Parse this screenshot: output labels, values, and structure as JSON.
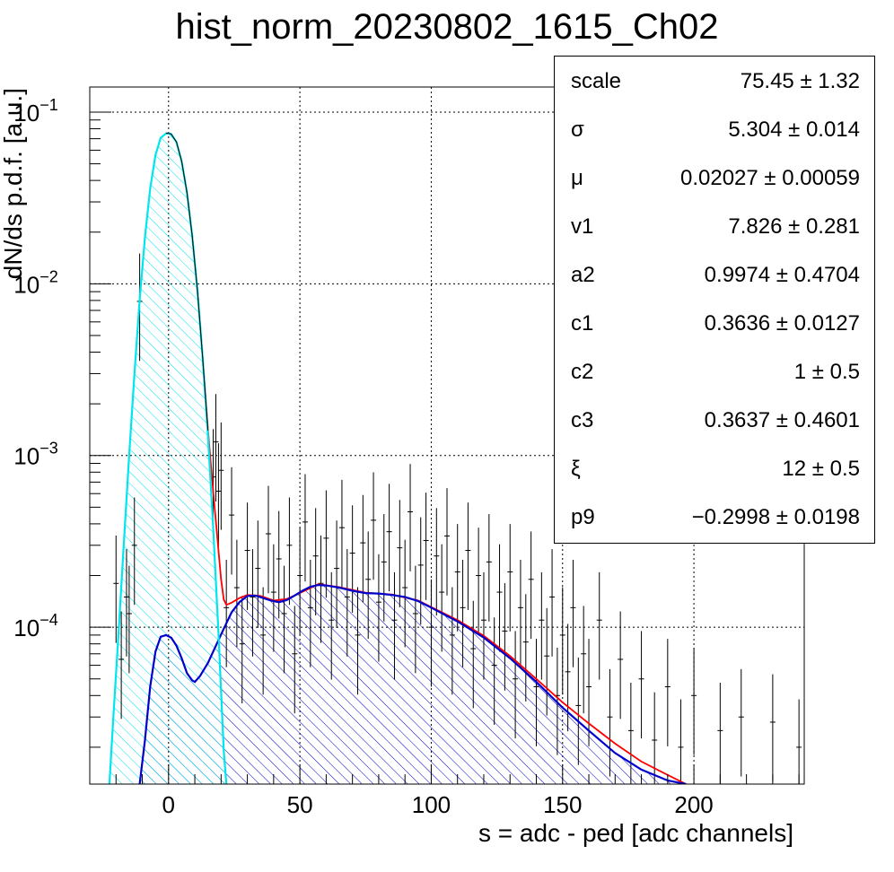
{
  "chart_data": {
    "type": "histogram",
    "title": "hist_norm_20230802_1615_Ch02",
    "xlabel": "s = adc - ped [adc channels]",
    "ylabel": "dN/ds p.d.f. [a.u.]",
    "xlim": [
      -30,
      242
    ],
    "ylim": [
      1.22e-05,
      0.14
    ],
    "yscale": "log",
    "grid": true,
    "x_ticks": [
      0,
      50,
      100,
      150,
      200
    ],
    "y_ticks": [
      {
        "value": 0.1,
        "base": "10",
        "exp": "−1"
      },
      {
        "value": 0.01,
        "base": "10",
        "exp": "−2"
      },
      {
        "value": 0.001,
        "base": "10",
        "exp": "−3"
      },
      {
        "value": 0.0001,
        "base": "10",
        "exp": "−4"
      }
    ],
    "colors": {
      "total_fit": "#ff0000",
      "pedestal": "#00e5ee",
      "signal": "#0000cc",
      "data": "#000000"
    },
    "curves": [
      {
        "id": "signal",
        "color": "#0000cc",
        "points": [
          [
            -11,
            1.22e-05
          ],
          [
            -9,
            2.2e-05
          ],
          [
            -7,
            4.5e-05
          ],
          [
            -5,
            7.2e-05
          ],
          [
            -3,
            8.8e-05
          ],
          [
            -1,
            9e-05
          ],
          [
            1,
            8.7e-05
          ],
          [
            3,
            7.8e-05
          ],
          [
            5,
            6.6e-05
          ],
          [
            7,
            5.4e-05
          ],
          [
            9,
            4.9e-05
          ],
          [
            10,
            4.8e-05
          ],
          [
            12,
            5.2e-05
          ],
          [
            15,
            6.2e-05
          ],
          [
            18,
            7.8e-05
          ],
          [
            21,
            9.8e-05
          ],
          [
            24,
            0.000122
          ],
          [
            27,
            0.00014
          ],
          [
            30,
            0.000152
          ],
          [
            33,
            0.000153
          ],
          [
            36,
            0.000148
          ],
          [
            39,
            0.000143
          ],
          [
            42,
            0.00014
          ],
          [
            45,
            0.000144
          ],
          [
            48,
            0.000153
          ],
          [
            51,
            0.000163
          ],
          [
            54,
            0.000172
          ],
          [
            57,
            0.000176
          ],
          [
            60,
            0.000175
          ],
          [
            65,
            0.00017
          ],
          [
            70,
            0.000163
          ],
          [
            75,
            0.000158
          ],
          [
            80,
            0.000157
          ],
          [
            85,
            0.000154
          ],
          [
            90,
            0.00015
          ],
          [
            95,
            0.000142
          ],
          [
            100,
            0.00013
          ],
          [
            110,
            0.000108
          ],
          [
            120,
            8.7e-05
          ],
          [
            130,
            6.6e-05
          ],
          [
            140,
            4.8e-05
          ],
          [
            150,
            3.4e-05
          ],
          [
            160,
            2.5e-05
          ],
          [
            170,
            1.85e-05
          ],
          [
            180,
            1.48e-05
          ],
          [
            190,
            1.28e-05
          ],
          [
            197,
            1.22e-05
          ]
        ]
      },
      {
        "id": "pedestal",
        "color": "#00e5ee",
        "points": [
          [
            -22.5,
            1.22e-05
          ],
          [
            -21,
            3e-05
          ],
          [
            -19,
            9.5e-05
          ],
          [
            -17,
            0.00031
          ],
          [
            -15,
            0.001
          ],
          [
            -13,
            0.003
          ],
          [
            -11,
            0.0081
          ],
          [
            -9,
            0.0187
          ],
          [
            -7,
            0.0358
          ],
          [
            -5,
            0.0561
          ],
          [
            -3,
            0.0709
          ],
          [
            -1,
            0.0751
          ],
          [
            0,
            0.0752
          ],
          [
            1,
            0.0744
          ],
          [
            3,
            0.0669
          ],
          [
            5,
            0.0516
          ],
          [
            7,
            0.034
          ],
          [
            9,
            0.0191
          ],
          [
            11,
            0.0091
          ],
          [
            13,
            0.0037
          ],
          [
            15,
            0.0013
          ],
          [
            17,
            0.00038
          ],
          [
            19,
            9.25e-05
          ],
          [
            21,
            1.9e-05
          ],
          [
            22,
            1.22e-05
          ]
        ]
      },
      {
        "id": "total_fit",
        "color": "#ff0000",
        "points": [
          [
            -1,
            0.0753
          ],
          [
            0,
            0.0754
          ],
          [
            1,
            0.0746
          ],
          [
            3,
            0.067
          ],
          [
            5,
            0.0517
          ],
          [
            7,
            0.034
          ],
          [
            9,
            0.0191
          ],
          [
            11,
            0.0091
          ],
          [
            13,
            0.0037
          ],
          [
            15,
            0.0014
          ],
          [
            17,
            0.00062
          ],
          [
            19,
            0.00028
          ],
          [
            20,
            0.00019
          ],
          [
            21,
            0.000145
          ],
          [
            22,
            0.000135
          ],
          [
            24,
            0.000139
          ],
          [
            27,
            0.000148
          ],
          [
            30,
            0.000154
          ],
          [
            35,
            0.000152
          ],
          [
            40,
            0.000143
          ],
          [
            45,
            0.000146
          ],
          [
            50,
            0.000158
          ],
          [
            57,
            0.000178
          ],
          [
            65,
            0.000171
          ],
          [
            75,
            0.000159
          ],
          [
            85,
            0.000155
          ],
          [
            95,
            0.000143
          ],
          [
            110,
            0.00011
          ],
          [
            120,
            8.9e-05
          ],
          [
            130,
            6.8e-05
          ],
          [
            140,
            5e-05
          ],
          [
            150,
            3.65e-05
          ],
          [
            160,
            2.75e-05
          ],
          [
            170,
            2.1e-05
          ],
          [
            180,
            1.65e-05
          ],
          [
            190,
            1.38e-05
          ],
          [
            197,
            1.22e-05
          ]
        ]
      },
      {
        "id": "data_trend",
        "color": "#000000",
        "points": [
          [
            -1,
            0.0753
          ],
          [
            0,
            0.0752
          ],
          [
            1,
            0.0745
          ],
          [
            3,
            0.067
          ],
          [
            5,
            0.0517
          ],
          [
            7,
            0.034
          ],
          [
            9,
            0.0191
          ],
          [
            11,
            0.0091
          ],
          [
            13,
            0.0037
          ],
          [
            15,
            0.0014
          ]
        ]
      }
    ],
    "data_points": [
      [
        -20,
        0.00018
      ],
      [
        -18,
        6.5e-05
      ],
      [
        -16,
        0.00015
      ],
      [
        -15,
        0.00012
      ],
      [
        -13,
        0.0003
      ],
      [
        -11,
        0.0079
      ],
      [
        17,
        0.00075
      ],
      [
        18,
        0.0012
      ],
      [
        19,
        0.00062
      ],
      [
        20,
        0.00082
      ],
      [
        22,
        0.00013
      ],
      [
        24,
        0.00045
      ],
      [
        26,
        0.00017
      ],
      [
        28,
        8e-05
      ],
      [
        30,
        0.00028
      ],
      [
        32,
        0.00015
      ],
      [
        34,
        0.00022
      ],
      [
        36,
        9e-05
      ],
      [
        38,
        0.00035
      ],
      [
        40,
        0.00016
      ],
      [
        42,
        0.00025
      ],
      [
        44,
        0.00012
      ],
      [
        46,
        0.0003
      ],
      [
        48,
        7e-05
      ],
      [
        50,
        0.0002
      ],
      [
        52,
        0.00041
      ],
      [
        54,
        0.00013
      ],
      [
        56,
        0.00026
      ],
      [
        58,
        0.00018
      ],
      [
        60,
        0.00033
      ],
      [
        62,
        0.00011
      ],
      [
        64,
        0.00022
      ],
      [
        66,
        0.00038
      ],
      [
        68,
        0.00015
      ],
      [
        70,
        0.00027
      ],
      [
        72,
        9e-05
      ],
      [
        74,
        0.00031
      ],
      [
        76,
        0.00019
      ],
      [
        78,
        0.00042
      ],
      [
        80,
        0.00014
      ],
      [
        82,
        0.00024
      ],
      [
        84,
        0.00036
      ],
      [
        86,
        0.00011
      ],
      [
        88,
        0.00029
      ],
      [
        90,
        0.00017
      ],
      [
        92,
        0.00047
      ],
      [
        94,
        0.00012
      ],
      [
        96,
        0.00023
      ],
      [
        98,
        0.00032
      ],
      [
        100,
        0.0001
      ],
      [
        102,
        0.00026
      ],
      [
        104,
        0.00016
      ],
      [
        106,
        0.00034
      ],
      [
        108,
        9e-05
      ],
      [
        110,
        0.00021
      ],
      [
        112,
        0.00013
      ],
      [
        114,
        0.00028
      ],
      [
        116,
        7.5e-05
      ],
      [
        118,
        0.0002
      ],
      [
        120,
        0.00011
      ],
      [
        122,
        0.00024
      ],
      [
        124,
        6e-05
      ],
      [
        126,
        0.00016
      ],
      [
        128,
        9.5e-05
      ],
      [
        130,
        0.00021
      ],
      [
        132,
        5e-05
      ],
      [
        134,
        0.00013
      ],
      [
        136,
        8.2e-05
      ],
      [
        138,
        0.00019
      ],
      [
        140,
        4.5e-05
      ],
      [
        142,
        0.00011
      ],
      [
        144,
        6.8e-05
      ],
      [
        146,
        0.00015
      ],
      [
        148,
        4e-05
      ],
      [
        150,
        9e-05
      ],
      [
        152,
        5.5e-05
      ],
      [
        154,
        0.00013
      ],
      [
        156,
        3.5e-05
      ],
      [
        158,
        7e-05
      ],
      [
        160,
        4.5e-05
      ],
      [
        164,
        0.00011
      ],
      [
        168,
        3e-05
      ],
      [
        172,
        6.5e-05
      ],
      [
        176,
        2.5e-05
      ],
      [
        180,
        5e-05
      ],
      [
        185,
        2.2e-05
      ],
      [
        190,
        4.5e-05
      ],
      [
        195,
        2e-05
      ],
      [
        200,
        4e-05
      ],
      [
        210,
        2.5e-05
      ],
      [
        218,
        3e-05
      ],
      [
        230,
        2.8e-05
      ],
      [
        240,
        2e-05
      ]
    ]
  },
  "stats": [
    {
      "name": "scale",
      "value": "75.45 ± 1.32"
    },
    {
      "name": "σ",
      "value": "5.304 ± 0.014"
    },
    {
      "name": "μ",
      "value": "0.02027 ± 0.00059"
    },
    {
      "name": "v1",
      "value": "7.826 ± 0.281"
    },
    {
      "name": "a2",
      "value": "0.9974 ± 0.4704"
    },
    {
      "name": "c1",
      "value": "0.3636 ± 0.0127"
    },
    {
      "name": "c2",
      "value": "1 ± 0.5"
    },
    {
      "name": "c3",
      "value": "0.3637 ± 0.4601"
    },
    {
      "name": "ξ",
      "value": "12 ± 0.5"
    },
    {
      "name": "p9",
      "value": "−0.2998 ± 0.0198"
    }
  ]
}
